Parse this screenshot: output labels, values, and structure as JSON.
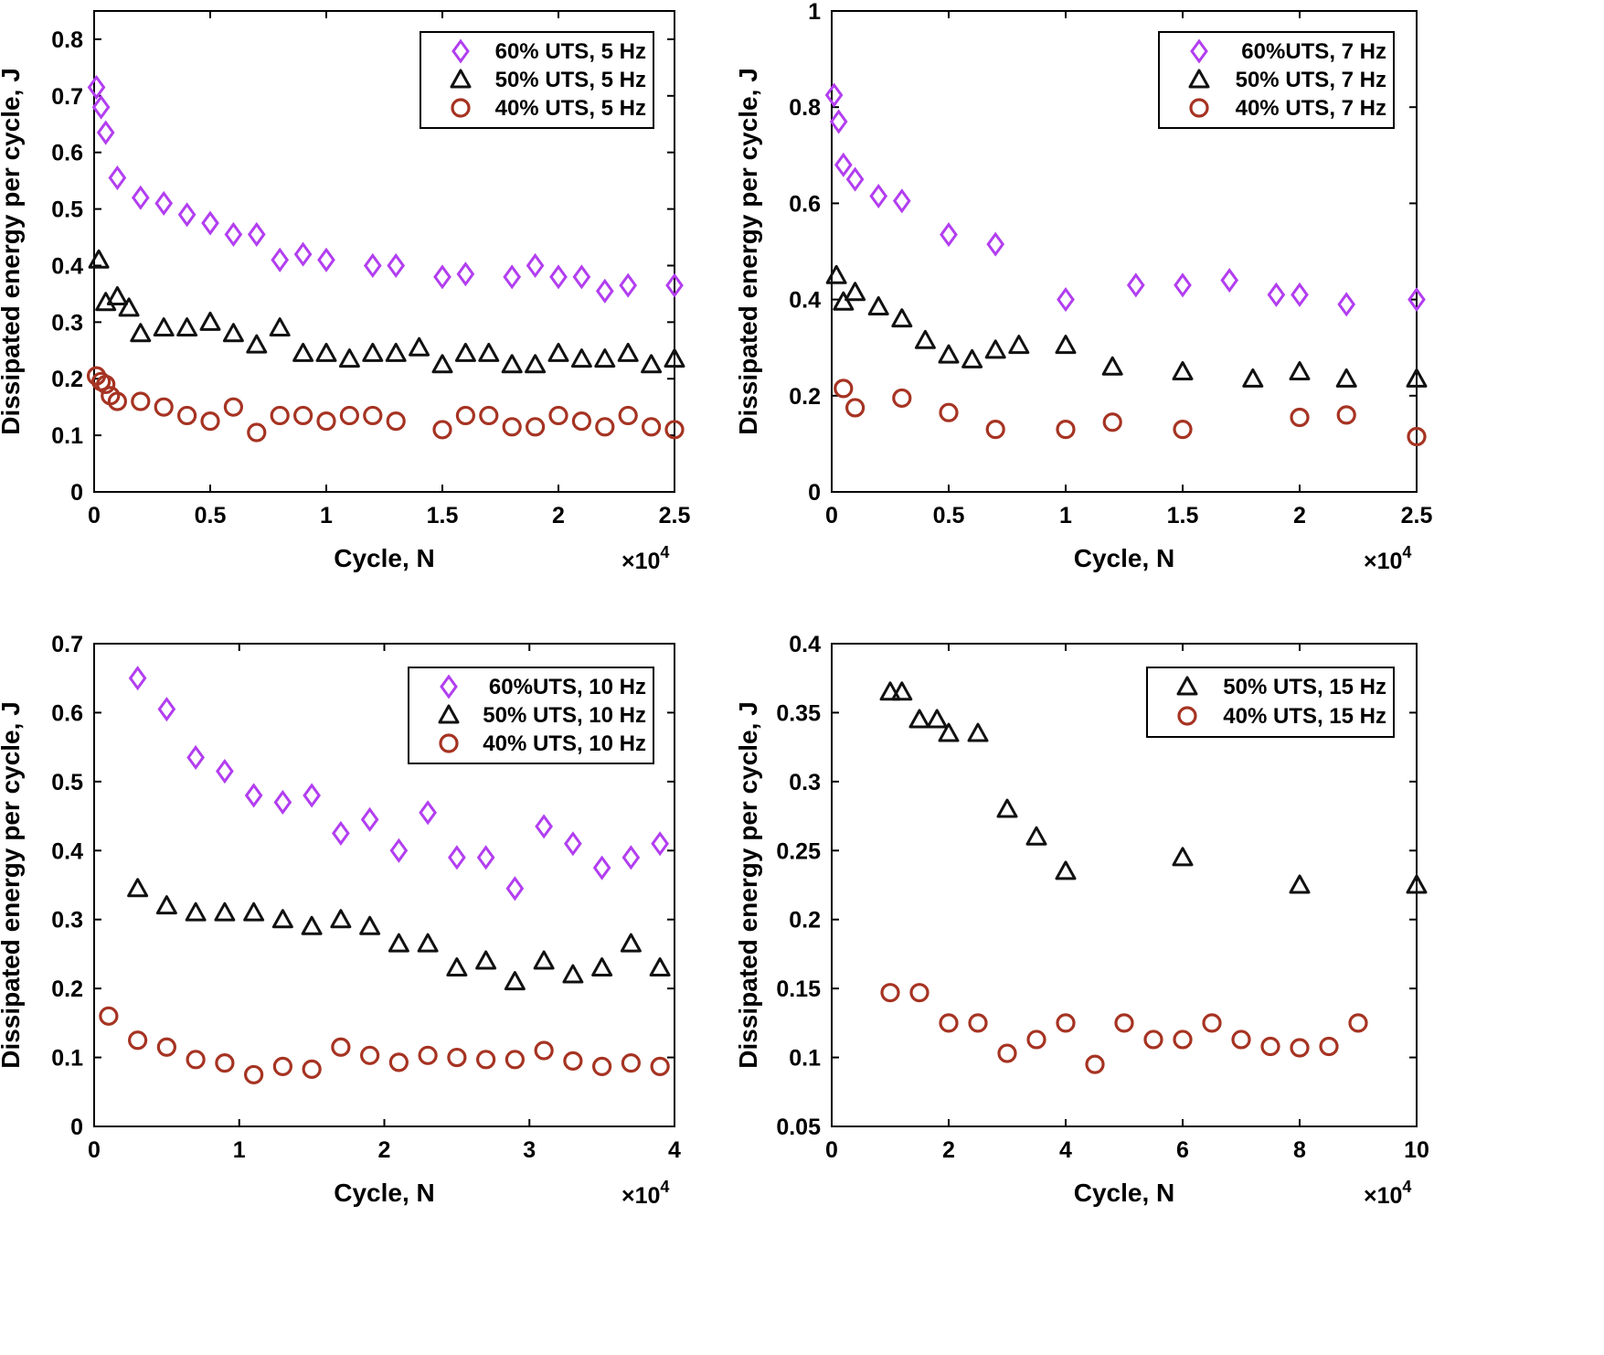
{
  "colors": {
    "diamond": "#b23ef0",
    "triangle": "#111111",
    "circle": "#a63322"
  },
  "chart_data": [
    {
      "type": "scatter",
      "title": "",
      "xlabel": "Cycle, N",
      "ylabel": "Dissipated energy per cycle, J",
      "x_multiplier": "×10",
      "x_multiplier_exp": "4",
      "xlim": [
        0,
        2.5
      ],
      "ylim": [
        0,
        0.85
      ],
      "xticks": [
        0,
        0.5,
        1,
        1.5,
        2,
        2.5
      ],
      "xtick_labels": [
        "0",
        "0.5",
        "1",
        "1.5",
        "2",
        "2.5"
      ],
      "yticks": [
        0,
        0.1,
        0.2,
        0.3,
        0.4,
        0.5,
        0.6,
        0.7,
        0.8
      ],
      "ytick_labels": [
        "0",
        "0.1",
        "0.2",
        "0.3",
        "0.4",
        "0.5",
        "0.6",
        "0.7",
        "0.8"
      ],
      "legend_position": "top-right",
      "series": [
        {
          "name": "60% UTS, 5 Hz",
          "marker": "diamond",
          "x": [
            0.01,
            0.03,
            0.05,
            0.1,
            0.2,
            0.3,
            0.4,
            0.5,
            0.6,
            0.7,
            0.8,
            0.9,
            1.0,
            1.2,
            1.3,
            1.5,
            1.6,
            1.8,
            1.9,
            2.0,
            2.1,
            2.2,
            2.3,
            2.5
          ],
          "y": [
            0.715,
            0.68,
            0.635,
            0.555,
            0.52,
            0.51,
            0.49,
            0.475,
            0.455,
            0.455,
            0.41,
            0.42,
            0.41,
            0.4,
            0.4,
            0.38,
            0.385,
            0.38,
            0.4,
            0.38,
            0.38,
            0.355,
            0.365,
            0.365
          ]
        },
        {
          "name": "50% UTS, 5 Hz",
          "marker": "triangle",
          "x": [
            0.02,
            0.05,
            0.1,
            0.15,
            0.2,
            0.3,
            0.4,
            0.5,
            0.6,
            0.7,
            0.8,
            0.9,
            1.0,
            1.1,
            1.2,
            1.3,
            1.4,
            1.5,
            1.6,
            1.7,
            1.8,
            1.9,
            2.0,
            2.1,
            2.2,
            2.3,
            2.4,
            2.5
          ],
          "y": [
            0.41,
            0.335,
            0.345,
            0.325,
            0.28,
            0.29,
            0.29,
            0.3,
            0.28,
            0.26,
            0.29,
            0.245,
            0.245,
            0.235,
            0.245,
            0.245,
            0.255,
            0.225,
            0.245,
            0.245,
            0.225,
            0.225,
            0.245,
            0.235,
            0.235,
            0.245,
            0.225,
            0.235
          ]
        },
        {
          "name": "40% UTS, 5 Hz",
          "marker": "circle",
          "x": [
            0.01,
            0.03,
            0.05,
            0.07,
            0.1,
            0.2,
            0.3,
            0.4,
            0.5,
            0.6,
            0.7,
            0.8,
            0.9,
            1.0,
            1.1,
            1.2,
            1.3,
            1.5,
            1.6,
            1.7,
            1.8,
            1.9,
            2.0,
            2.1,
            2.2,
            2.3,
            2.4,
            2.5
          ],
          "y": [
            0.205,
            0.195,
            0.19,
            0.17,
            0.16,
            0.16,
            0.15,
            0.135,
            0.125,
            0.15,
            0.105,
            0.135,
            0.135,
            0.125,
            0.135,
            0.135,
            0.125,
            0.11,
            0.135,
            0.135,
            0.115,
            0.115,
            0.135,
            0.125,
            0.115,
            0.135,
            0.115,
            0.11
          ]
        }
      ]
    },
    {
      "type": "scatter",
      "title": "",
      "xlabel": "Cycle, N",
      "ylabel": "Dissipated energy per cycle, J",
      "x_multiplier": "×10",
      "x_multiplier_exp": "4",
      "xlim": [
        0,
        2.5
      ],
      "ylim": [
        0,
        1.0
      ],
      "xticks": [
        0,
        0.5,
        1,
        1.5,
        2,
        2.5
      ],
      "xtick_labels": [
        "0",
        "0.5",
        "1",
        "1.5",
        "2",
        "2.5"
      ],
      "yticks": [
        0,
        0.2,
        0.4,
        0.6,
        0.8,
        1.0
      ],
      "ytick_labels": [
        "0",
        "0.2",
        "0.4",
        "0.6",
        "0.8",
        "1"
      ],
      "legend_position": "top-right",
      "series": [
        {
          "name": "60%UTS, 7 Hz",
          "marker": "diamond",
          "x": [
            0.01,
            0.03,
            0.05,
            0.1,
            0.2,
            0.3,
            0.5,
            0.7,
            1.0,
            1.3,
            1.5,
            1.7,
            1.9,
            2.0,
            2.2,
            2.5
          ],
          "y": [
            0.825,
            0.77,
            0.68,
            0.65,
            0.615,
            0.605,
            0.535,
            0.515,
            0.4,
            0.43,
            0.43,
            0.44,
            0.41,
            0.41,
            0.39,
            0.4
          ]
        },
        {
          "name": "50% UTS, 7 Hz",
          "marker": "triangle",
          "x": [
            0.02,
            0.05,
            0.1,
            0.2,
            0.3,
            0.4,
            0.5,
            0.6,
            0.7,
            0.8,
            1.0,
            1.2,
            1.5,
            1.8,
            2.0,
            2.2,
            2.5
          ],
          "y": [
            0.45,
            0.395,
            0.415,
            0.385,
            0.36,
            0.315,
            0.285,
            0.275,
            0.295,
            0.305,
            0.305,
            0.26,
            0.25,
            0.235,
            0.25,
            0.235,
            0.235
          ]
        },
        {
          "name": "40% UTS, 7 Hz",
          "marker": "circle",
          "x": [
            0.05,
            0.1,
            0.3,
            0.5,
            0.7,
            1.0,
            1.2,
            1.5,
            2.0,
            2.2,
            2.5
          ],
          "y": [
            0.215,
            0.175,
            0.195,
            0.165,
            0.13,
            0.13,
            0.145,
            0.13,
            0.155,
            0.16,
            0.115
          ]
        }
      ]
    },
    {
      "type": "scatter",
      "title": "",
      "xlabel": "Cycle, N",
      "ylabel": "Dissipated energy per cycle, J",
      "x_multiplier": "×10",
      "x_multiplier_exp": "4",
      "xlim": [
        0,
        4
      ],
      "ylim": [
        0,
        0.7
      ],
      "xticks": [
        0,
        1,
        2,
        3,
        4
      ],
      "xtick_labels": [
        "0",
        "1",
        "2",
        "3",
        "4"
      ],
      "yticks": [
        0,
        0.1,
        0.2,
        0.3,
        0.4,
        0.5,
        0.6,
        0.7
      ],
      "ytick_labels": [
        "0",
        "0.1",
        "0.2",
        "0.3",
        "0.4",
        "0.5",
        "0.6",
        "0.7"
      ],
      "legend_position": "top-right",
      "series": [
        {
          "name": "60%UTS, 10 Hz",
          "marker": "diamond",
          "x": [
            0.3,
            0.5,
            0.7,
            0.9,
            1.1,
            1.3,
            1.5,
            1.7,
            1.9,
            2.1,
            2.3,
            2.5,
            2.7,
            2.9,
            3.1,
            3.3,
            3.5,
            3.7,
            3.9
          ],
          "y": [
            0.65,
            0.605,
            0.535,
            0.515,
            0.48,
            0.47,
            0.48,
            0.425,
            0.445,
            0.4,
            0.455,
            0.39,
            0.39,
            0.345,
            0.435,
            0.41,
            0.375,
            0.39,
            0.41
          ]
        },
        {
          "name": "50% UTS, 10 Hz",
          "marker": "triangle",
          "x": [
            0.3,
            0.5,
            0.7,
            0.9,
            1.1,
            1.3,
            1.5,
            1.7,
            1.9,
            2.1,
            2.3,
            2.5,
            2.7,
            2.9,
            3.1,
            3.3,
            3.5,
            3.7,
            3.9
          ],
          "y": [
            0.345,
            0.32,
            0.31,
            0.31,
            0.31,
            0.3,
            0.29,
            0.3,
            0.29,
            0.265,
            0.265,
            0.23,
            0.24,
            0.21,
            0.24,
            0.22,
            0.23,
            0.265,
            0.23
          ]
        },
        {
          "name": "40% UTS, 10 Hz",
          "marker": "circle",
          "x": [
            0.1,
            0.3,
            0.5,
            0.7,
            0.9,
            1.1,
            1.3,
            1.5,
            1.7,
            1.9,
            2.1,
            2.3,
            2.5,
            2.7,
            2.9,
            3.1,
            3.3,
            3.5,
            3.7,
            3.9
          ],
          "y": [
            0.16,
            0.125,
            0.115,
            0.097,
            0.092,
            0.075,
            0.087,
            0.083,
            0.115,
            0.103,
            0.093,
            0.103,
            0.1,
            0.097,
            0.097,
            0.11,
            0.095,
            0.087,
            0.092,
            0.087
          ]
        }
      ]
    },
    {
      "type": "scatter",
      "title": "",
      "xlabel": "Cycle, N",
      "ylabel": "Dissipated energy per cycle, J",
      "x_multiplier": "×10",
      "x_multiplier_exp": "4",
      "xlim": [
        0,
        10
      ],
      "ylim": [
        0.05,
        0.4
      ],
      "xticks": [
        0,
        2,
        4,
        6,
        8,
        10
      ],
      "xtick_labels": [
        "0",
        "2",
        "4",
        "6",
        "8",
        "10"
      ],
      "yticks": [
        0.05,
        0.1,
        0.15,
        0.2,
        0.25,
        0.3,
        0.35,
        0.4
      ],
      "ytick_labels": [
        "0.05",
        "0.1",
        "0.15",
        "0.2",
        "0.25",
        "0.3",
        "0.35",
        "0.4"
      ],
      "legend_position": "top-right",
      "series": [
        {
          "name": "50% UTS, 15 Hz",
          "marker": "triangle",
          "x": [
            1.0,
            1.2,
            1.5,
            1.8,
            2.0,
            2.5,
            3.0,
            3.5,
            4.0,
            6.0,
            8.0,
            10.0
          ],
          "y": [
            0.365,
            0.365,
            0.345,
            0.345,
            0.335,
            0.335,
            0.28,
            0.26,
            0.235,
            0.245,
            0.225,
            0.225
          ]
        },
        {
          "name": "40% UTS, 15 Hz",
          "marker": "circle",
          "x": [
            1.0,
            1.5,
            2.0,
            2.5,
            3.0,
            3.5,
            4.0,
            4.5,
            5.0,
            5.5,
            6.0,
            6.5,
            7.0,
            7.5,
            8.0,
            8.5,
            9.0
          ],
          "y": [
            0.147,
            0.147,
            0.125,
            0.125,
            0.103,
            0.113,
            0.125,
            0.095,
            0.125,
            0.113,
            0.113,
            0.125,
            0.113,
            0.108,
            0.107,
            0.108,
            0.125
          ]
        }
      ]
    }
  ]
}
